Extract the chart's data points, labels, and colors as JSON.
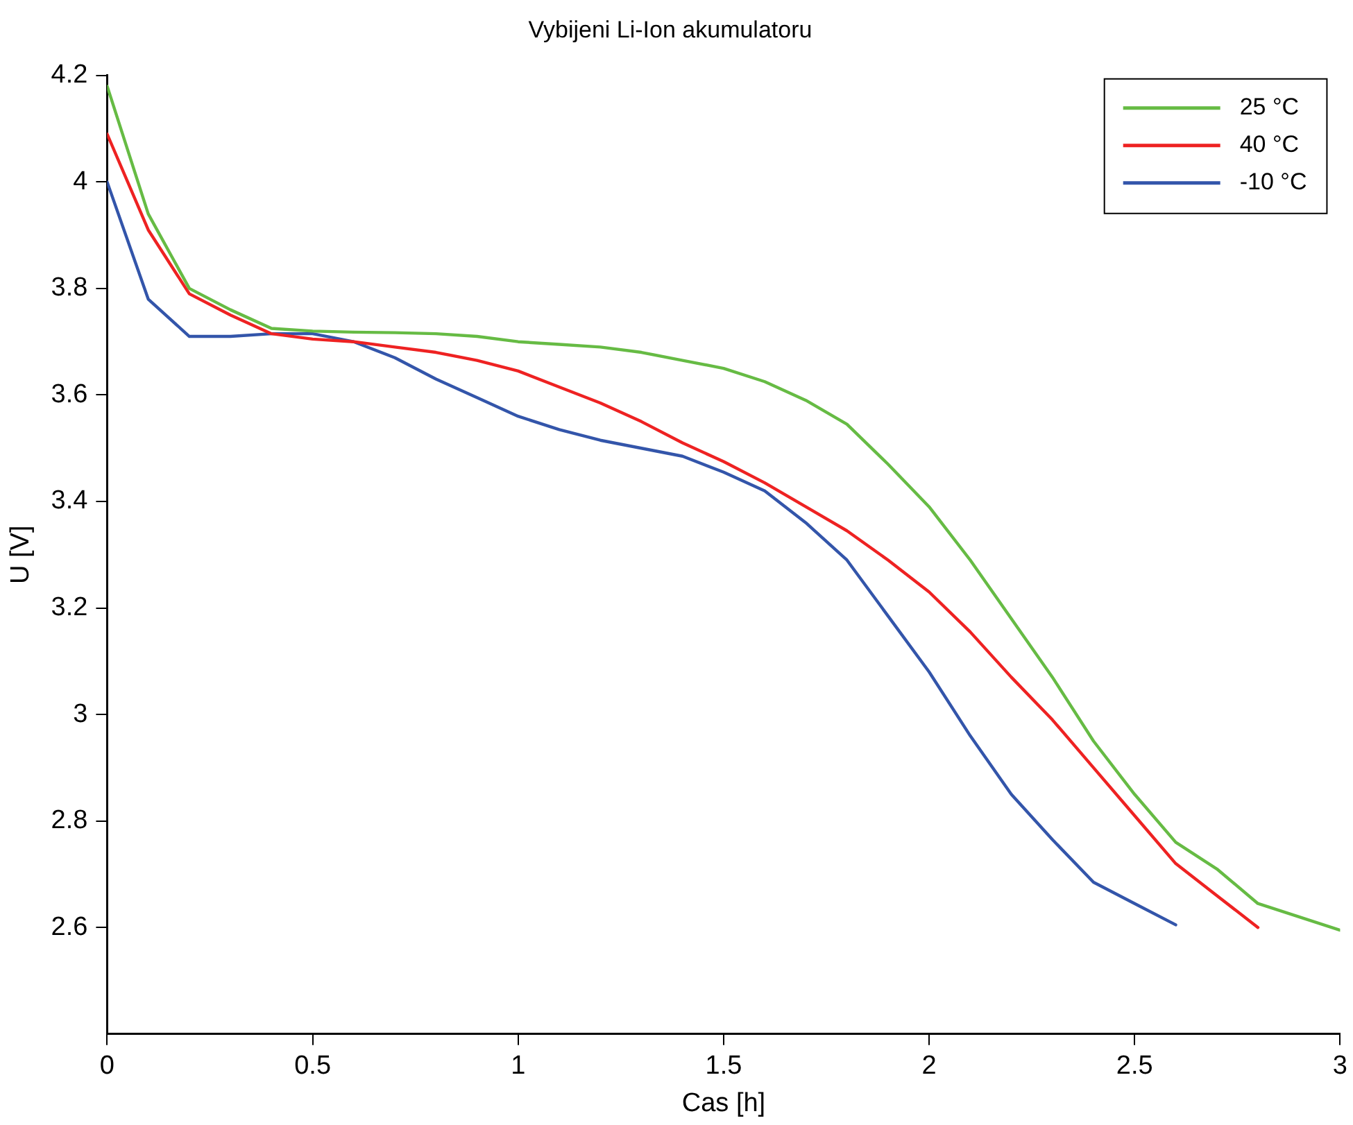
{
  "chart_data": {
    "type": "line",
    "title": "Vybijeni Li-Ion akumulatoru",
    "xlabel": "Cas [h]",
    "ylabel": "U [V]",
    "x": [
      0,
      0.1,
      0.2,
      0.3,
      0.4,
      0.5,
      0.6,
      0.7,
      0.8,
      0.9,
      1.0,
      1.1,
      1.2,
      1.3,
      1.4,
      1.5,
      1.6,
      1.7,
      1.8,
      1.9,
      2.0,
      2.1,
      2.2,
      2.3,
      2.4,
      2.5,
      2.6,
      2.7,
      2.8,
      2.9,
      3.0
    ],
    "series": [
      {
        "name": "25 °C",
        "color": "#66bb44",
        "values": [
          4.18,
          3.94,
          3.8,
          3.76,
          3.725,
          3.72,
          3.718,
          3.717,
          3.715,
          3.71,
          3.7,
          3.695,
          3.69,
          3.68,
          3.665,
          3.65,
          3.625,
          3.59,
          3.545,
          3.47,
          3.39,
          3.29,
          3.18,
          3.07,
          2.95,
          2.85,
          2.76,
          2.71,
          2.645,
          2.62,
          2.595
        ]
      },
      {
        "name": "40 °C",
        "color": "#ee2222",
        "values": [
          4.09,
          3.91,
          3.79,
          3.75,
          3.715,
          3.705,
          3.7,
          3.69,
          3.68,
          3.665,
          3.645,
          3.615,
          3.585,
          3.55,
          3.51,
          3.475,
          3.435,
          3.39,
          3.345,
          3.29,
          3.23,
          3.155,
          3.07,
          2.99,
          2.9,
          2.81,
          2.72,
          2.66,
          2.6,
          null,
          null
        ]
      },
      {
        "name": "-10 °C",
        "color": "#3355aa",
        "values": [
          4.0,
          3.78,
          3.71,
          3.71,
          3.715,
          3.715,
          3.7,
          3.67,
          3.63,
          3.595,
          3.56,
          3.535,
          3.515,
          3.5,
          3.485,
          3.455,
          3.42,
          3.36,
          3.29,
          3.185,
          3.08,
          2.96,
          2.85,
          2.765,
          2.685,
          2.645,
          2.605,
          null,
          null,
          null,
          null
        ]
      }
    ],
    "xlim": [
      0,
      3
    ],
    "xticks": [
      0,
      0.5,
      1,
      1.5,
      2,
      2.5,
      3
    ],
    "ylim": [
      2.4,
      4.2
    ],
    "yticks": [
      2.6,
      2.8,
      3,
      3.2,
      3.4,
      3.6,
      3.8,
      4,
      4.2
    ],
    "grid": false,
    "legend": "top right",
    "marker": "none",
    "line_style": "solid"
  }
}
